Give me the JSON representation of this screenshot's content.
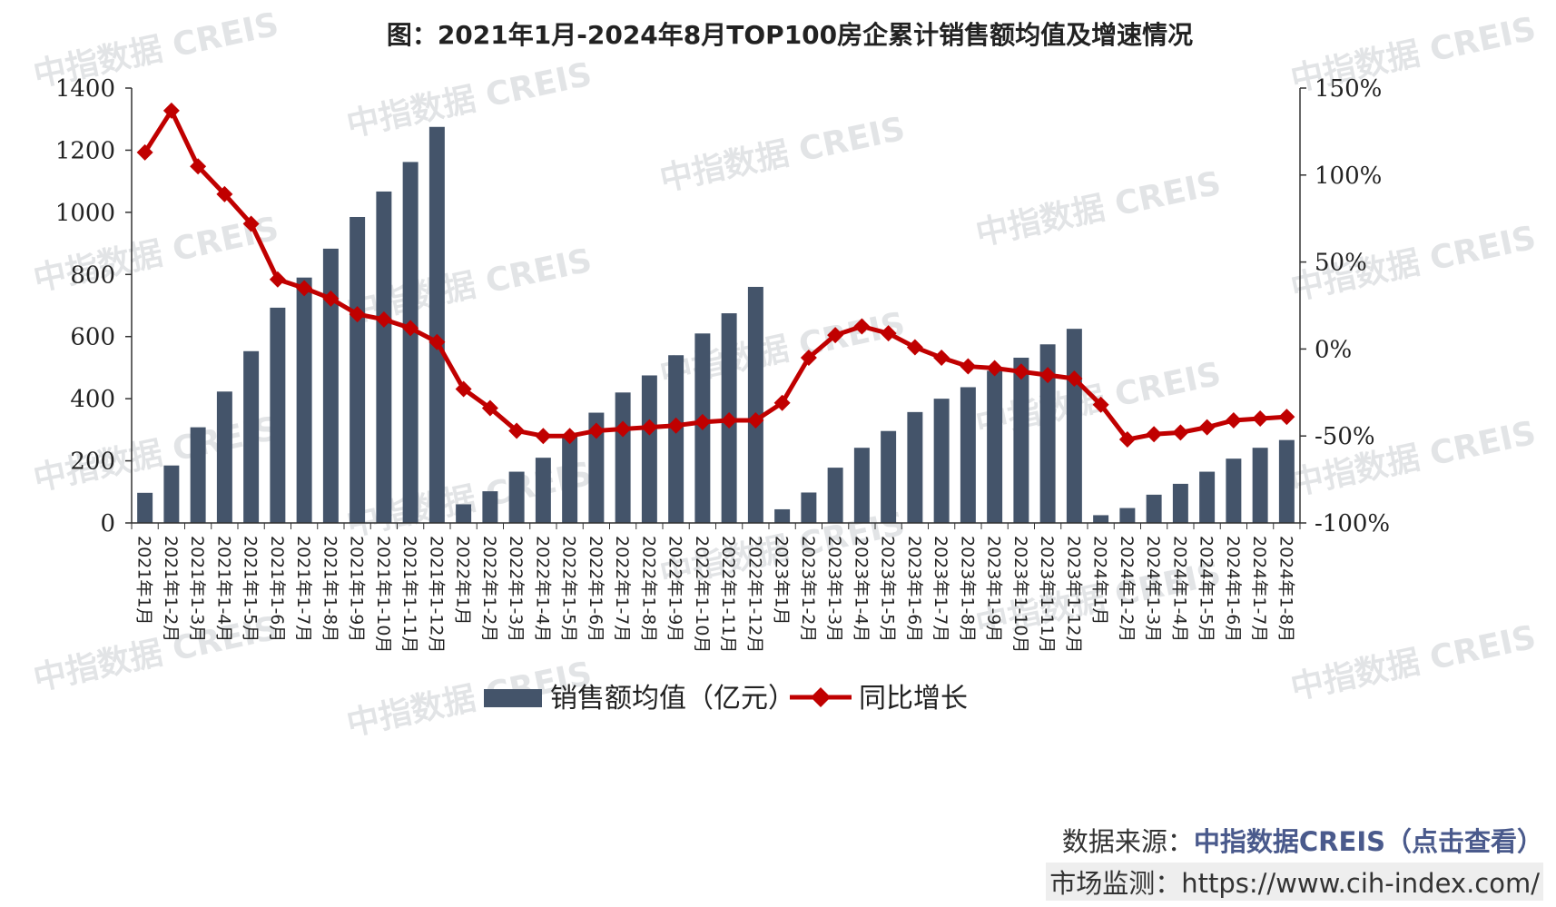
{
  "chart_data": {
    "type": "bar+line",
    "title": "图：2021年1月-2024年8月TOP100房企累计销售额均值及增速情况",
    "categories": [
      "2021年1月",
      "2021年1-2月",
      "2021年1-3月",
      "2021年1-4月",
      "2021年1-5月",
      "2021年1-6月",
      "2021年1-7月",
      "2021年1-8月",
      "2021年1-9月",
      "2021年1-10月",
      "2021年1-11月",
      "2021年1-12月",
      "2022年1月",
      "2022年1-2月",
      "2022年1-3月",
      "2022年1-4月",
      "2022年1-5月",
      "2022年1-6月",
      "2022年1-7月",
      "2022年1-8月",
      "2022年1-9月",
      "2022年1-10月",
      "2022年1-11月",
      "2022年1-12月",
      "2023年1月",
      "2023年1-2月",
      "2023年1-3月",
      "2023年1-4月",
      "2023年1-5月",
      "2023年1-6月",
      "2023年1-7月",
      "2023年1-8月",
      "2023年1-9月",
      "2023年1-10月",
      "2023年1-11月",
      "2023年1-12月",
      "2024年1月",
      "2024年1-2月",
      "2024年1-3月",
      "2024年1-4月",
      "2024年1-5月",
      "2024年1-6月",
      "2024年1-7月",
      "2024年1-8月"
    ],
    "series": [
      {
        "name": "销售额均值（亿元）",
        "type": "bar",
        "axis": "left",
        "color": "#44546a",
        "values": [
          97,
          185,
          308,
          423,
          553,
          693,
          790,
          883,
          985,
          1067,
          1162,
          1275,
          60,
          102,
          165,
          210,
          280,
          355,
          420,
          475,
          540,
          610,
          675,
          760,
          44,
          98,
          178,
          242,
          296,
          357,
          400,
          437,
          490,
          532,
          575,
          625,
          25,
          48,
          91,
          126,
          165,
          207,
          242,
          267
        ]
      },
      {
        "name": "同比增长",
        "type": "line",
        "axis": "right",
        "color": "#c00000",
        "values": [
          113,
          137,
          105,
          89,
          72,
          40,
          35,
          29,
          20,
          17,
          12,
          4,
          -23,
          -34,
          -47,
          -50,
          -50,
          -47,
          -46,
          -45,
          -44,
          -42,
          -41,
          -41,
          -31,
          -5,
          8,
          13,
          9,
          1,
          -5,
          -10,
          -11,
          -13,
          -15,
          -17,
          -32,
          -52,
          -49,
          -48,
          -45,
          -41,
          -40,
          -39
        ]
      }
    ],
    "y_left": {
      "min": 0,
      "max": 1400,
      "ticks": [
        "0",
        "200",
        "400",
        "600",
        "800",
        "1000",
        "1200",
        "1400"
      ]
    },
    "y_right": {
      "min": -100,
      "max": 150,
      "ticks": [
        "-100%",
        "-50%",
        "0%",
        "50%",
        "100%",
        "150%"
      ]
    },
    "legend": [
      "销售额均值（亿元）",
      "同比增长"
    ],
    "legend_position": "bottom-center"
  },
  "watermark": "中指数据 CREIS",
  "footer": {
    "source_label": "数据来源：",
    "source_link": "中指数据CREIS（点击查看）",
    "monitor_label": "市场监测：",
    "monitor_url": "https://www.cih-index.com/"
  }
}
